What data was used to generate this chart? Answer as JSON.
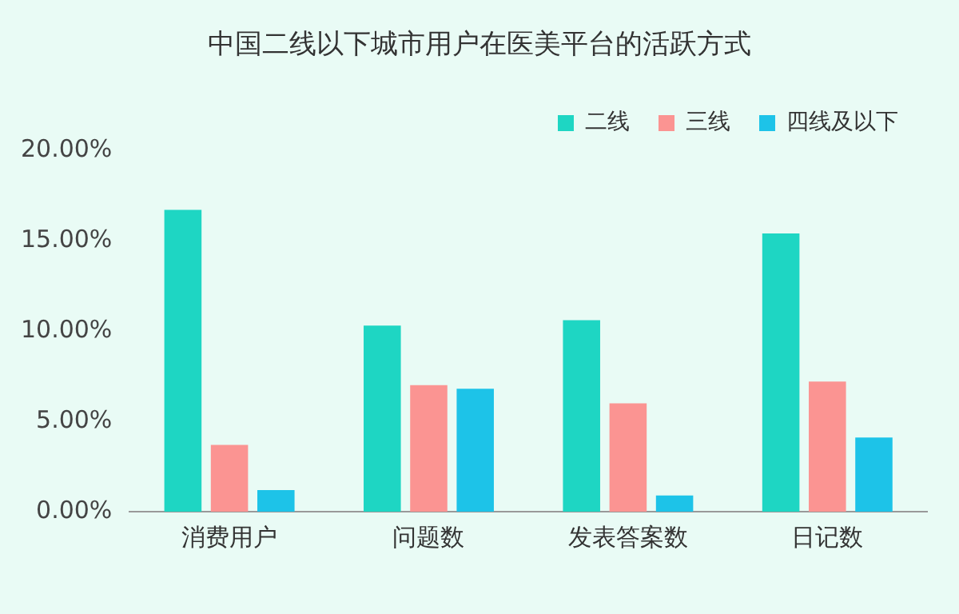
{
  "chart_data": {
    "type": "bar",
    "title": "中国二线以下城市用户在医美平台的活跃方式",
    "categories": [
      "消费用户",
      "问题数",
      "发表答案数",
      "日记数"
    ],
    "series": [
      {
        "name": "二线",
        "color": "#1ed6c3",
        "values": [
          16.7,
          10.3,
          10.6,
          15.4
        ]
      },
      {
        "name": "三线",
        "color": "#fb9492",
        "values": [
          3.7,
          7.0,
          6.0,
          7.2
        ]
      },
      {
        "name": "四线及以下",
        "color": "#1dc3e8",
        "values": [
          1.2,
          6.8,
          0.9,
          4.1
        ]
      }
    ],
    "ylim": [
      0,
      20
    ],
    "yticks": [
      {
        "value": 0,
        "label": "0.00%"
      },
      {
        "value": 5,
        "label": "5.00%"
      },
      {
        "value": 10,
        "label": "10.00%"
      },
      {
        "value": 15,
        "label": "15.00%"
      },
      {
        "value": 20,
        "label": "20.00%"
      }
    ],
    "grid": false,
    "legend": "top right"
  }
}
